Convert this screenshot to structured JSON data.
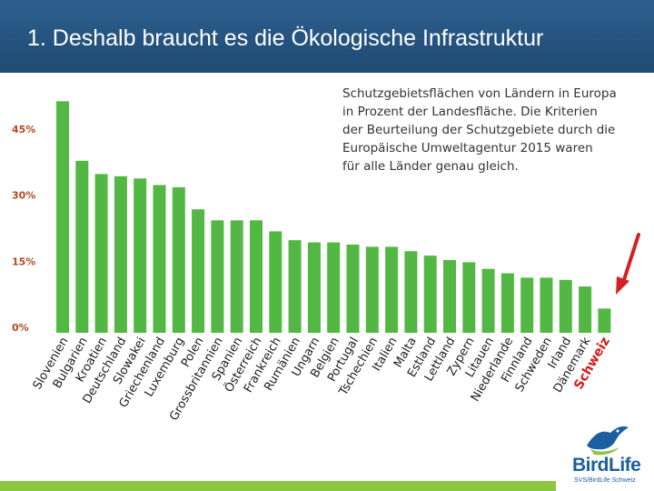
{
  "slide": {
    "title": "1. Deshalb braucht es die Ökologische Infrastruktur"
  },
  "logo": {
    "name": "BirdLife",
    "subtitle": "SVS/BirdLife Schweiz"
  },
  "colors": {
    "bar": "#53b843",
    "highlight_label": "#d41b1b",
    "arrow": "#d42020",
    "tick": "#b24a1e"
  },
  "chart_data": {
    "type": "bar",
    "title": "",
    "note_lines": [
      "Schutzgebietsflächen von Ländern in Europa",
      "in  Prozent  der  Landesfläche.  Die  Kriterien",
      "der Beurteilung der Schutzgebiete durch die",
      "Europäische   Umweltagentur  2015   waren",
      "für alle Länder genau gleich."
    ],
    "xlabel": "",
    "ylabel": "",
    "ylim": [
      0,
      50
    ],
    "yticks": [
      0,
      15,
      30,
      45
    ],
    "ytick_labels": [
      "0%",
      "15%",
      "30%",
      "45%"
    ],
    "grid": false,
    "highlight": "Schweiz",
    "categories": [
      "Slovenien",
      "Bulgarien",
      "Kroatien",
      "Deutschland",
      "Slowakei",
      "Griechenland",
      "Luxemburg",
      "Polen",
      "Grossbritannien",
      "Spanien",
      "Österreich",
      "Frankreich",
      "Rumänien",
      "Ungarn",
      "Belgien",
      "Portugal",
      "Tschechien",
      "Italien",
      "Malta",
      "Estland",
      "Lettland",
      "Zypern",
      "Litauen",
      "Niederlande",
      "Finnland",
      "Schweden",
      "Irland",
      "Dänemark",
      "Schweiz"
    ],
    "values": [
      52.5,
      39,
      36,
      35.5,
      35,
      33.5,
      33,
      28,
      25.5,
      25.5,
      25.5,
      23,
      21,
      20.5,
      20.5,
      20,
      19.5,
      19.5,
      18.5,
      17.5,
      16.5,
      16,
      14.5,
      13.5,
      12.5,
      12.5,
      12,
      10.5,
      5.5
    ]
  }
}
